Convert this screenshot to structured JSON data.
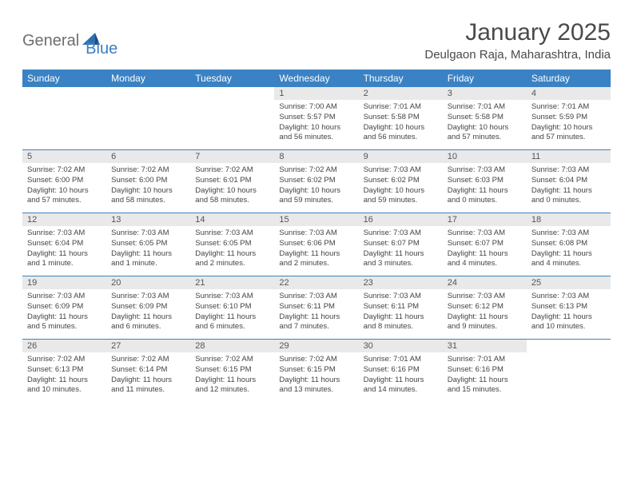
{
  "logo": {
    "text1": "General",
    "text2": "Blue"
  },
  "title": "January 2025",
  "location": "Deulgaon Raja, Maharashtra, India",
  "colors": {
    "header_bg": "#3a82c4",
    "header_text": "#ffffff",
    "daynum_bg": "#e9e9e9",
    "border": "#3a82c4",
    "logo_gray": "#6e6e6e",
    "logo_blue": "#3a7fc2",
    "text": "#444444"
  },
  "dayNames": [
    "Sunday",
    "Monday",
    "Tuesday",
    "Wednesday",
    "Thursday",
    "Friday",
    "Saturday"
  ],
  "weeks": [
    [
      {
        "n": "",
        "sunrise": "",
        "sunset": "",
        "daylight": ""
      },
      {
        "n": "",
        "sunrise": "",
        "sunset": "",
        "daylight": ""
      },
      {
        "n": "",
        "sunrise": "",
        "sunset": "",
        "daylight": ""
      },
      {
        "n": "1",
        "sunrise": "Sunrise: 7:00 AM",
        "sunset": "Sunset: 5:57 PM",
        "daylight": "Daylight: 10 hours and 56 minutes."
      },
      {
        "n": "2",
        "sunrise": "Sunrise: 7:01 AM",
        "sunset": "Sunset: 5:58 PM",
        "daylight": "Daylight: 10 hours and 56 minutes."
      },
      {
        "n": "3",
        "sunrise": "Sunrise: 7:01 AM",
        "sunset": "Sunset: 5:58 PM",
        "daylight": "Daylight: 10 hours and 57 minutes."
      },
      {
        "n": "4",
        "sunrise": "Sunrise: 7:01 AM",
        "sunset": "Sunset: 5:59 PM",
        "daylight": "Daylight: 10 hours and 57 minutes."
      }
    ],
    [
      {
        "n": "5",
        "sunrise": "Sunrise: 7:02 AM",
        "sunset": "Sunset: 6:00 PM",
        "daylight": "Daylight: 10 hours and 57 minutes."
      },
      {
        "n": "6",
        "sunrise": "Sunrise: 7:02 AM",
        "sunset": "Sunset: 6:00 PM",
        "daylight": "Daylight: 10 hours and 58 minutes."
      },
      {
        "n": "7",
        "sunrise": "Sunrise: 7:02 AM",
        "sunset": "Sunset: 6:01 PM",
        "daylight": "Daylight: 10 hours and 58 minutes."
      },
      {
        "n": "8",
        "sunrise": "Sunrise: 7:02 AM",
        "sunset": "Sunset: 6:02 PM",
        "daylight": "Daylight: 10 hours and 59 minutes."
      },
      {
        "n": "9",
        "sunrise": "Sunrise: 7:03 AM",
        "sunset": "Sunset: 6:02 PM",
        "daylight": "Daylight: 10 hours and 59 minutes."
      },
      {
        "n": "10",
        "sunrise": "Sunrise: 7:03 AM",
        "sunset": "Sunset: 6:03 PM",
        "daylight": "Daylight: 11 hours and 0 minutes."
      },
      {
        "n": "11",
        "sunrise": "Sunrise: 7:03 AM",
        "sunset": "Sunset: 6:04 PM",
        "daylight": "Daylight: 11 hours and 0 minutes."
      }
    ],
    [
      {
        "n": "12",
        "sunrise": "Sunrise: 7:03 AM",
        "sunset": "Sunset: 6:04 PM",
        "daylight": "Daylight: 11 hours and 1 minute."
      },
      {
        "n": "13",
        "sunrise": "Sunrise: 7:03 AM",
        "sunset": "Sunset: 6:05 PM",
        "daylight": "Daylight: 11 hours and 1 minute."
      },
      {
        "n": "14",
        "sunrise": "Sunrise: 7:03 AM",
        "sunset": "Sunset: 6:05 PM",
        "daylight": "Daylight: 11 hours and 2 minutes."
      },
      {
        "n": "15",
        "sunrise": "Sunrise: 7:03 AM",
        "sunset": "Sunset: 6:06 PM",
        "daylight": "Daylight: 11 hours and 2 minutes."
      },
      {
        "n": "16",
        "sunrise": "Sunrise: 7:03 AM",
        "sunset": "Sunset: 6:07 PM",
        "daylight": "Daylight: 11 hours and 3 minutes."
      },
      {
        "n": "17",
        "sunrise": "Sunrise: 7:03 AM",
        "sunset": "Sunset: 6:07 PM",
        "daylight": "Daylight: 11 hours and 4 minutes."
      },
      {
        "n": "18",
        "sunrise": "Sunrise: 7:03 AM",
        "sunset": "Sunset: 6:08 PM",
        "daylight": "Daylight: 11 hours and 4 minutes."
      }
    ],
    [
      {
        "n": "19",
        "sunrise": "Sunrise: 7:03 AM",
        "sunset": "Sunset: 6:09 PM",
        "daylight": "Daylight: 11 hours and 5 minutes."
      },
      {
        "n": "20",
        "sunrise": "Sunrise: 7:03 AM",
        "sunset": "Sunset: 6:09 PM",
        "daylight": "Daylight: 11 hours and 6 minutes."
      },
      {
        "n": "21",
        "sunrise": "Sunrise: 7:03 AM",
        "sunset": "Sunset: 6:10 PM",
        "daylight": "Daylight: 11 hours and 6 minutes."
      },
      {
        "n": "22",
        "sunrise": "Sunrise: 7:03 AM",
        "sunset": "Sunset: 6:11 PM",
        "daylight": "Daylight: 11 hours and 7 minutes."
      },
      {
        "n": "23",
        "sunrise": "Sunrise: 7:03 AM",
        "sunset": "Sunset: 6:11 PM",
        "daylight": "Daylight: 11 hours and 8 minutes."
      },
      {
        "n": "24",
        "sunrise": "Sunrise: 7:03 AM",
        "sunset": "Sunset: 6:12 PM",
        "daylight": "Daylight: 11 hours and 9 minutes."
      },
      {
        "n": "25",
        "sunrise": "Sunrise: 7:03 AM",
        "sunset": "Sunset: 6:13 PM",
        "daylight": "Daylight: 11 hours and 10 minutes."
      }
    ],
    [
      {
        "n": "26",
        "sunrise": "Sunrise: 7:02 AM",
        "sunset": "Sunset: 6:13 PM",
        "daylight": "Daylight: 11 hours and 10 minutes."
      },
      {
        "n": "27",
        "sunrise": "Sunrise: 7:02 AM",
        "sunset": "Sunset: 6:14 PM",
        "daylight": "Daylight: 11 hours and 11 minutes."
      },
      {
        "n": "28",
        "sunrise": "Sunrise: 7:02 AM",
        "sunset": "Sunset: 6:15 PM",
        "daylight": "Daylight: 11 hours and 12 minutes."
      },
      {
        "n": "29",
        "sunrise": "Sunrise: 7:02 AM",
        "sunset": "Sunset: 6:15 PM",
        "daylight": "Daylight: 11 hours and 13 minutes."
      },
      {
        "n": "30",
        "sunrise": "Sunrise: 7:01 AM",
        "sunset": "Sunset: 6:16 PM",
        "daylight": "Daylight: 11 hours and 14 minutes."
      },
      {
        "n": "31",
        "sunrise": "Sunrise: 7:01 AM",
        "sunset": "Sunset: 6:16 PM",
        "daylight": "Daylight: 11 hours and 15 minutes."
      },
      {
        "n": "",
        "sunrise": "",
        "sunset": "",
        "daylight": ""
      }
    ]
  ]
}
